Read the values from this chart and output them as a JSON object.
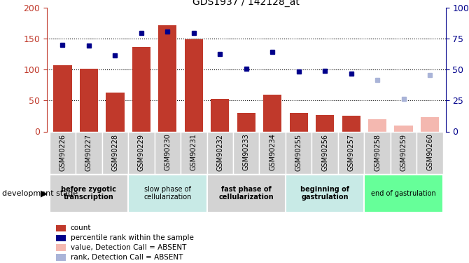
{
  "title": "GDS1937 / 142128_at",
  "samples": [
    "GSM90226",
    "GSM90227",
    "GSM90228",
    "GSM90229",
    "GSM90230",
    "GSM90231",
    "GSM90232",
    "GSM90233",
    "GSM90234",
    "GSM90255",
    "GSM90256",
    "GSM90257",
    "GSM90258",
    "GSM90259",
    "GSM90260"
  ],
  "bar_values": [
    107,
    101,
    63,
    137,
    172,
    149,
    53,
    30,
    60,
    30,
    27,
    25,
    null,
    null,
    null
  ],
  "bar_absent_values": [
    null,
    null,
    null,
    null,
    null,
    null,
    null,
    null,
    null,
    null,
    null,
    null,
    20,
    10,
    23
  ],
  "rank_values": [
    140,
    139,
    123,
    160,
    162,
    159,
    125,
    101,
    129,
    97,
    98,
    94,
    null,
    null,
    null
  ],
  "rank_absent_values": [
    null,
    null,
    null,
    null,
    null,
    null,
    null,
    null,
    null,
    null,
    null,
    null,
    83,
    53,
    91
  ],
  "bar_color": "#c0392b",
  "bar_absent_color": "#f4b8b0",
  "rank_color": "#00008b",
  "rank_absent_color": "#aab4d8",
  "ylim": [
    0,
    200
  ],
  "y2lim": [
    0,
    100
  ],
  "yticks": [
    0,
    50,
    100,
    150,
    200
  ],
  "y2ticks": [
    0,
    25,
    50,
    75,
    100
  ],
  "stage_groups": [
    {
      "label": "before zygotic\ntranscription",
      "samples_idx": [
        0,
        1,
        2
      ],
      "color": "#d3d3d3",
      "font_bold": true
    },
    {
      "label": "slow phase of\ncellularization",
      "samples_idx": [
        3,
        4,
        5
      ],
      "color": "#c8eae6",
      "font_bold": false
    },
    {
      "label": "fast phase of\ncellularization",
      "samples_idx": [
        6,
        7,
        8
      ],
      "color": "#d3d3d3",
      "font_bold": true
    },
    {
      "label": "beginning of\ngastrulation",
      "samples_idx": [
        9,
        10,
        11
      ],
      "color": "#c8eae6",
      "font_bold": true
    },
    {
      "label": "end of gastrulation",
      "samples_idx": [
        12,
        13,
        14
      ],
      "color": "#66ff99",
      "font_bold": false
    }
  ],
  "legend_items": [
    {
      "label": "count",
      "color": "#c0392b"
    },
    {
      "label": "percentile rank within the sample",
      "color": "#00008b"
    },
    {
      "label": "value, Detection Call = ABSENT",
      "color": "#f4b8b0"
    },
    {
      "label": "rank, Detection Call = ABSENT",
      "color": "#aab4d8"
    }
  ],
  "dev_stage_label": "development stage"
}
